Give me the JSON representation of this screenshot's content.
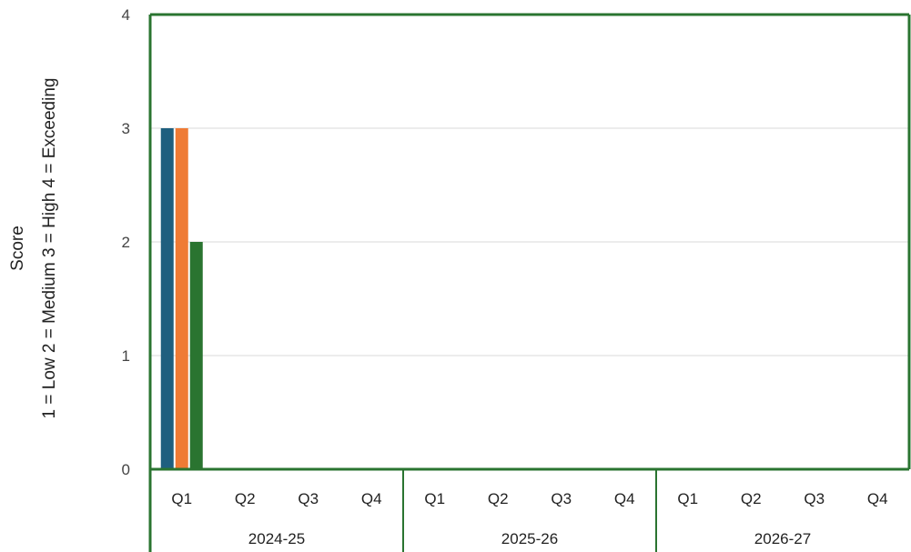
{
  "chart_data": {
    "type": "bar",
    "title": "",
    "ylabel_lines": [
      "Score",
      "1 = Low   2 = Medium   3 = High 4 = Exceeding"
    ],
    "ylim": [
      0,
      4
    ],
    "yticks": [
      "0",
      "1",
      "2",
      "3",
      "4"
    ],
    "groups": [
      {
        "label": "2024-25",
        "quarters": [
          "Q1",
          "Q2",
          "Q3",
          "Q4"
        ]
      },
      {
        "label": "2025-26",
        "quarters": [
          "Q1",
          "Q2",
          "Q3",
          "Q4"
        ]
      },
      {
        "label": "2026-27",
        "quarters": [
          "Q1",
          "Q2",
          "Q3",
          "Q4"
        ]
      }
    ],
    "series": [
      {
        "color": "#1f5f7f",
        "values": [
          3,
          null,
          null,
          null,
          null,
          null,
          null,
          null,
          null,
          null,
          null,
          null
        ]
      },
      {
        "color": "#ef7b35",
        "values": [
          3,
          null,
          null,
          null,
          null,
          null,
          null,
          null,
          null,
          null,
          null,
          null
        ]
      },
      {
        "color": "#2a7430",
        "values": [
          2,
          null,
          null,
          null,
          null,
          null,
          null,
          null,
          null,
          null,
          null,
          null
        ]
      }
    ],
    "grid": true,
    "legend": "none",
    "frame_color": "#2a7430",
    "gridline_color": "#d9d9d9"
  }
}
